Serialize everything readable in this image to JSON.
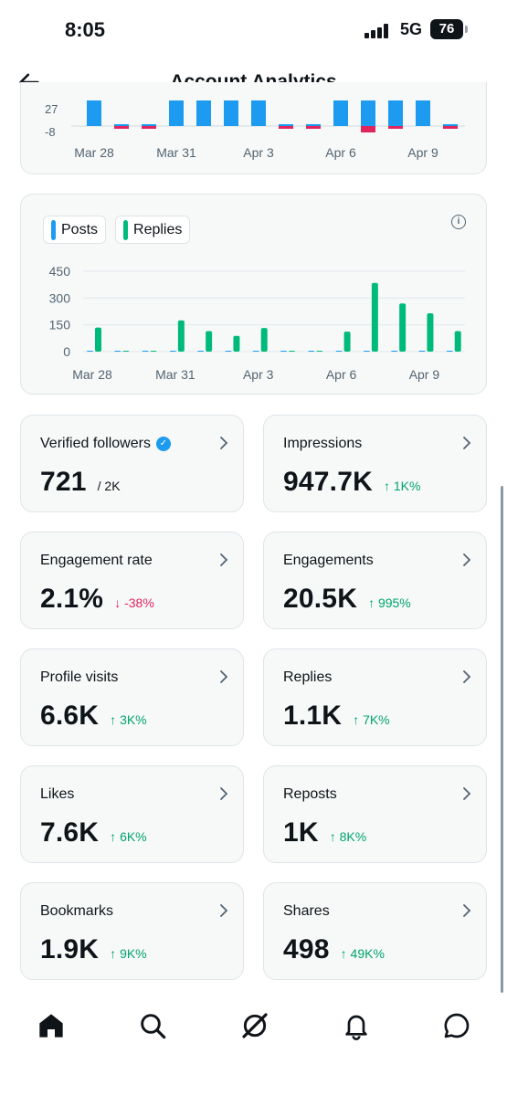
{
  "status_bar": {
    "time": "8:05",
    "network": "5G",
    "battery": "76"
  },
  "header": {
    "title": "Account Analytics"
  },
  "top_chart": {
    "y_ticks": [
      "27",
      "-8"
    ],
    "x_labels": [
      "Mar 28",
      "Mar 31",
      "Apr 3",
      "Apr 6",
      "Apr 9"
    ],
    "colors": {
      "positive": "#1d9bf0",
      "negative": "#e0245e"
    }
  },
  "chart_data": {
    "type": "bar",
    "categories": [
      "Mar 28",
      "Mar 29",
      "Mar 30",
      "Mar 31",
      "Apr 1",
      "Apr 2",
      "Apr 3",
      "Apr 4",
      "Apr 5",
      "Apr 6",
      "Apr 7",
      "Apr 8",
      "Apr 9",
      "Apr 10"
    ],
    "x_tick_labels": [
      "Mar 28",
      "Mar 31",
      "Apr 3",
      "Apr 6",
      "Apr 9"
    ],
    "series": [
      {
        "name": "Posts",
        "color": "#1d9bf0",
        "values": [
          2,
          0,
          3,
          4,
          2,
          0,
          2,
          1,
          0,
          2,
          5,
          1,
          3,
          2
        ]
      },
      {
        "name": "Replies",
        "color": "#00ba7c",
        "values": [
          135,
          0,
          0,
          175,
          115,
          88,
          132,
          0,
          0,
          112,
          385,
          270,
          215,
          115
        ]
      }
    ],
    "yticks": [
      "0",
      "150",
      "300",
      "450"
    ],
    "ylim": [
      0,
      450
    ],
    "grid": true,
    "legend": "top-left"
  },
  "metrics": [
    {
      "label": "Verified followers",
      "value": "721",
      "sub": "/ 2K",
      "change": "",
      "direction": "none",
      "verified": true
    },
    {
      "label": "Impressions",
      "value": "947.7K",
      "sub": "",
      "change": "1K%",
      "direction": "up",
      "verified": false
    },
    {
      "label": "Engagement rate",
      "value": "2.1%",
      "sub": "",
      "change": "-38%",
      "direction": "down",
      "verified": false
    },
    {
      "label": "Engagements",
      "value": "20.5K",
      "sub": "",
      "change": "995%",
      "direction": "up",
      "verified": false
    },
    {
      "label": "Profile visits",
      "value": "6.6K",
      "sub": "",
      "change": "3K%",
      "direction": "up",
      "verified": false
    },
    {
      "label": "Replies",
      "value": "1.1K",
      "sub": "",
      "change": "7K%",
      "direction": "up",
      "verified": false
    },
    {
      "label": "Likes",
      "value": "7.6K",
      "sub": "",
      "change": "6K%",
      "direction": "up",
      "verified": false
    },
    {
      "label": "Reposts",
      "value": "1K",
      "sub": "",
      "change": "8K%",
      "direction": "up",
      "verified": false
    },
    {
      "label": "Bookmarks",
      "value": "1.9K",
      "sub": "",
      "change": "9K%",
      "direction": "up",
      "verified": false
    },
    {
      "label": "Shares",
      "value": "498",
      "sub": "",
      "change": "49K%",
      "direction": "up",
      "verified": false
    }
  ],
  "nav": [
    "home-icon",
    "search-icon",
    "grok-icon",
    "notifications-icon",
    "messages-icon"
  ]
}
